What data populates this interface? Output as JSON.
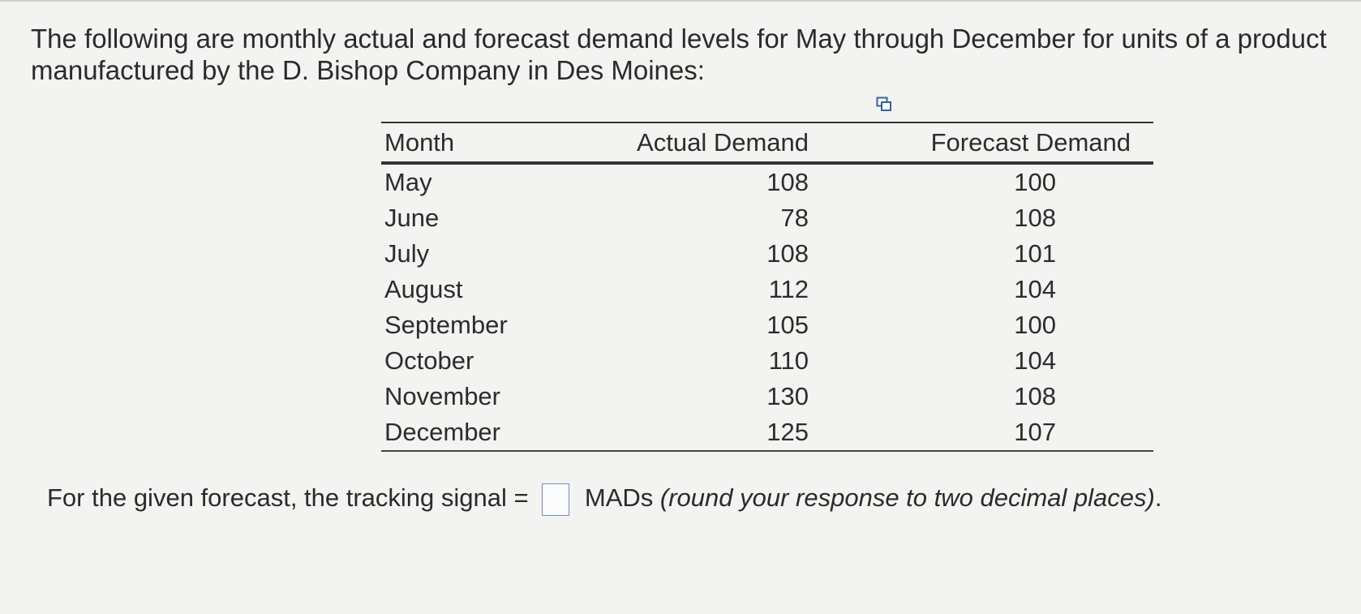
{
  "intro_text": "The following are monthly actual and forecast demand levels for May through December for units of a product manufactured by the D. Bishop Company in Des Moines:",
  "table": {
    "headers": [
      "Month",
      "Actual Demand",
      "Forecast Demand"
    ],
    "rows": [
      [
        "May",
        "108",
        "100"
      ],
      [
        "June",
        "78",
        "108"
      ],
      [
        "July",
        "108",
        "101"
      ],
      [
        "August",
        "112",
        "104"
      ],
      [
        "September",
        "105",
        "100"
      ],
      [
        "October",
        "110",
        "104"
      ],
      [
        "November",
        "130",
        "108"
      ],
      [
        "December",
        "125",
        "107"
      ]
    ]
  },
  "question": {
    "prefix": "For the given forecast, the tracking signal =",
    "unit": "MADs",
    "hint": "(round your response to two decimal places)",
    "end": "."
  },
  "icons": {
    "copy_table": "copy-icon"
  },
  "colors": {
    "answer_box_border": "#6d8fb3",
    "table_rule": "#333333"
  }
}
